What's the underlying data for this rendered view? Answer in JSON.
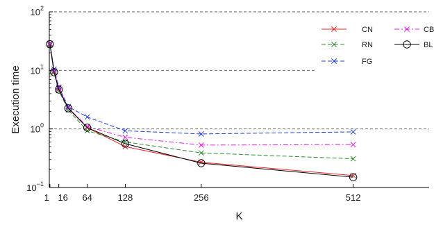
{
  "chart_data": {
    "type": "line",
    "xlabel": "K",
    "ylabel": "Execution time",
    "x_scale": "linear",
    "y_scale": "log",
    "xlim": [
      0,
      640
    ],
    "ylim": [
      0.1,
      100
    ],
    "x_ticks": [
      {
        "value": 1,
        "label": "1"
      },
      {
        "value": 16,
        "label": "16"
      },
      {
        "value": 64,
        "label": "64"
      },
      {
        "value": 128,
        "label": "128"
      },
      {
        "value": 256,
        "label": "256"
      },
      {
        "value": 512,
        "label": "512"
      }
    ],
    "y_ticks": [
      {
        "value": 0.1,
        "base": "10",
        "exp": "−1"
      },
      {
        "value": 1,
        "base": "10",
        "exp": "0"
      },
      {
        "value": 10,
        "base": "10",
        "exp": "1"
      },
      {
        "value": 100,
        "base": "10",
        "exp": "2"
      }
    ],
    "grid": "horizontal dashed at major y ticks",
    "legend_position": "top-right",
    "series": [
      {
        "name": "CN",
        "color": "#e8262a",
        "dash": "solid",
        "marker": "x",
        "x": [
          1,
          8,
          16,
          32,
          64,
          128,
          256,
          512
        ],
        "y": [
          28,
          9.5,
          4.8,
          2.3,
          1.05,
          0.5,
          0.27,
          0.16
        ]
      },
      {
        "name": "RN",
        "color": "#2e8b2e",
        "dash": "dashed",
        "marker": "x",
        "x": [
          1,
          8,
          16,
          32,
          64,
          128,
          256,
          512
        ],
        "y": [
          27,
          9.2,
          4.5,
          2.1,
          0.93,
          0.6,
          0.39,
          0.31
        ]
      },
      {
        "name": "FG",
        "color": "#1f3fd6",
        "dash": "dashed",
        "marker": "x",
        "x": [
          1,
          8,
          16,
          32,
          64,
          128,
          256,
          512
        ],
        "y": [
          29,
          10.5,
          5.2,
          2.4,
          1.6,
          0.93,
          0.82,
          0.89
        ]
      },
      {
        "name": "CB",
        "color": "#e020e0",
        "dash": "dashdot",
        "marker": "x",
        "x": [
          1,
          8,
          16,
          32,
          64,
          128,
          256,
          512
        ],
        "y": [
          28.5,
          9.8,
          5.0,
          2.3,
          1.1,
          0.72,
          0.53,
          0.54
        ]
      },
      {
        "name": "BL",
        "color": "#000000",
        "dash": "solid",
        "marker": "o",
        "x": [
          1,
          8,
          16,
          32,
          64,
          128,
          256,
          512
        ],
        "y": [
          28,
          9.3,
          4.7,
          2.25,
          1.05,
          0.56,
          0.26,
          0.15
        ]
      }
    ]
  }
}
